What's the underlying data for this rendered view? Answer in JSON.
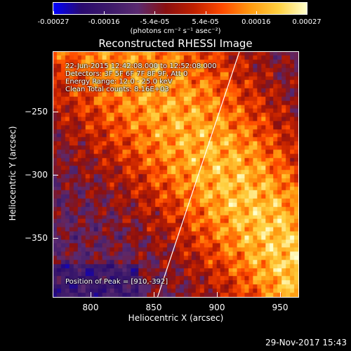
{
  "colorbar": {
    "ticks": [
      "-0.00027",
      "-0.00016",
      "-5.4e-05",
      "5.4e-05",
      "0.00016",
      "0.00027"
    ],
    "unit_text": "(photons cm⁻² s⁻¹ asec⁻²)",
    "colormap": [
      "#0000ff",
      "#2a0a6e",
      "#3d1a6a",
      "#5a2a70",
      "#8a1010",
      "#c02000",
      "#ff4a00",
      "#ff9a10",
      "#ffd040",
      "#ffffcc"
    ]
  },
  "annotations": {
    "time_range": "22-Jun-2015 12:42:08.000 to 12:52:08.000",
    "detectors": "Detectors: 3F 5F 6F 7F 8F 9F, Att 0",
    "energy": "Energy Range: 12.0 - 25.0 keV",
    "method": "Clean     Total counts: 8.16E+03",
    "peak": "Position of Peak = [910,-392]"
  },
  "timestamp": "29-Nov-2017 15:43",
  "chart_data": {
    "type": "heatmap",
    "title": "Reconstructed RHESSI Image",
    "xlabel": "Heliocentric X (arcsec)",
    "ylabel": "Heliocentric Y (arcsec)",
    "xlim": [
      770,
      965
    ],
    "ylim": [
      -397,
      -202
    ],
    "xticks": [
      800,
      850,
      900,
      950
    ],
    "yticks": [
      -250,
      -300,
      -350
    ],
    "zlim": [
      -0.00027,
      0.00027
    ],
    "peak_position": [
      910,
      -392
    ],
    "limb_line": [
      [
        853,
        -397
      ],
      [
        918,
        -202
      ]
    ],
    "grid": false
  }
}
